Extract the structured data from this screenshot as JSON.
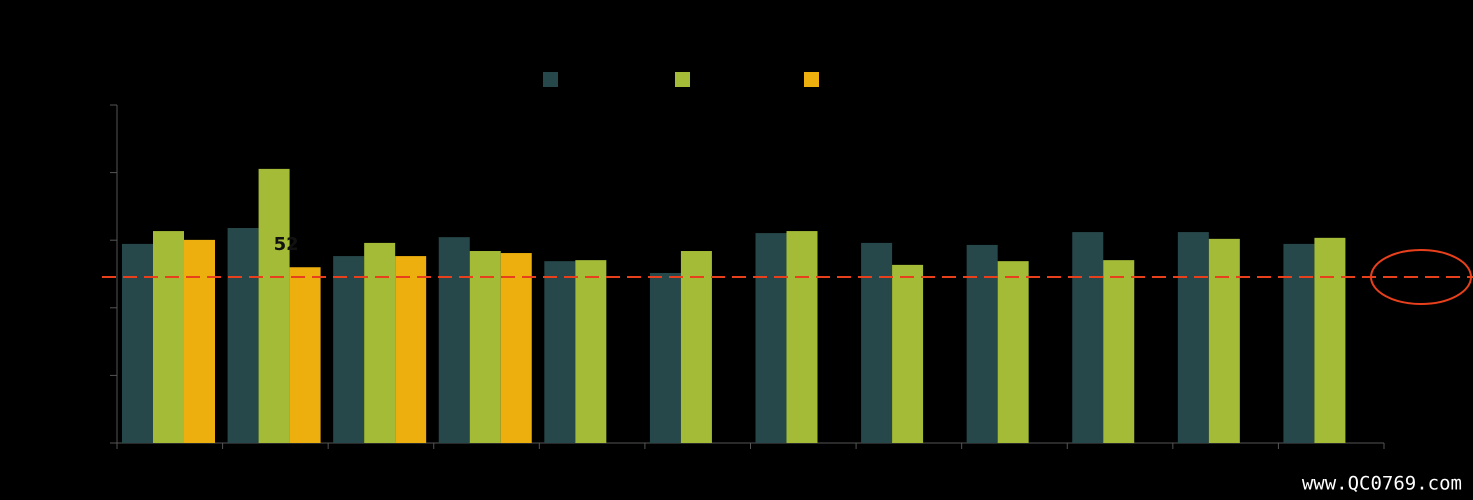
{
  "chart_data": {
    "type": "bar",
    "categories": [
      null,
      null,
      null,
      null,
      null,
      null,
      null,
      null,
      null,
      null,
      null,
      null
    ],
    "series": [
      {
        "color": "#27484a",
        "values": [
          58.9,
          63.6,
          55.3,
          60.9,
          53.8,
          50.3,
          62.1,
          59.2,
          58.6,
          62.4,
          62.4,
          58.9
        ]
      },
      {
        "color": "#a3bb37",
        "values": [
          62.7,
          81.1,
          59.2,
          56.8,
          54.1,
          56.8,
          62.7,
          52.7,
          53.8,
          54.1,
          60.4,
          60.7
        ]
      },
      {
        "color": "#edaf0e",
        "values": [
          60.1,
          52,
          55.3,
          56.2,
          null,
          null,
          null,
          null,
          null,
          null,
          null,
          null
        ]
      }
    ],
    "labeled_point": "chart_data.series.2.values.1",
    "reference_line": {
      "value": 49.1,
      "color": "#e8401c"
    },
    "ylim": [
      0,
      100
    ],
    "yticks": [
      0,
      20,
      40,
      60,
      80,
      100
    ],
    "watermark": "www.QC0769.com"
  }
}
